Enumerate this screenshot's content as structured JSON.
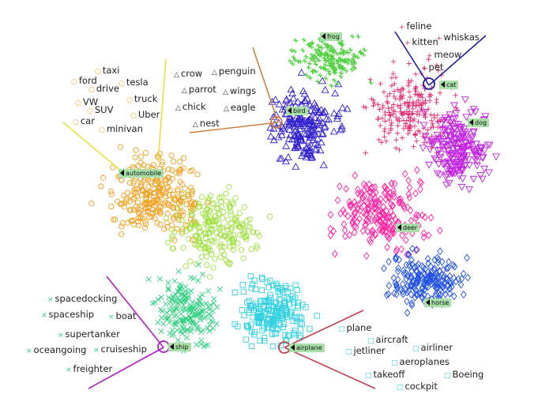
{
  "chart_data": {
    "type": "scatter",
    "grid": false,
    "classes": [
      {
        "label": "automobile",
        "marker": "circle",
        "color": "#f0a020",
        "words": [
          "taxi",
          "ford",
          "drive",
          "tesla",
          "VW",
          "truck",
          "SUV",
          "Uber",
          "car",
          "minivan"
        ]
      },
      {
        "label": "bird",
        "marker": "triangle-up",
        "color": "#3020d0",
        "words": [
          "crow",
          "penguin",
          "parrot",
          "wings",
          "chick",
          "eagle",
          "nest"
        ]
      },
      {
        "label": "cat",
        "marker": "plus",
        "color": "#e03070",
        "words": [
          "feline",
          "whiskas",
          "kitten",
          "meow",
          "pet"
        ]
      },
      {
        "label": "ship",
        "marker": "x",
        "color": "#30d080",
        "words": [
          "spacedocking",
          "spaceship",
          "boat",
          "supertanker",
          "oceangoing",
          "cruiseship",
          "freighter"
        ]
      },
      {
        "label": "airplane",
        "marker": "square",
        "color": "#30d0e0",
        "words": [
          "plane",
          "aircraft",
          "airliner",
          "jetliner",
          "aeroplanes",
          "takeoff",
          "Boeing",
          "cockpit"
        ]
      },
      {
        "label": "frog",
        "marker": "star",
        "color": "#50d040",
        "words": []
      },
      {
        "label": "dog",
        "marker": "triangle-down",
        "color": "#c020e0",
        "words": []
      },
      {
        "label": "deer",
        "marker": "diamond",
        "color": "#ff20a0",
        "words": []
      },
      {
        "label": "horse",
        "marker": "diamond",
        "color": "#2050e0",
        "words": []
      }
    ]
  }
}
